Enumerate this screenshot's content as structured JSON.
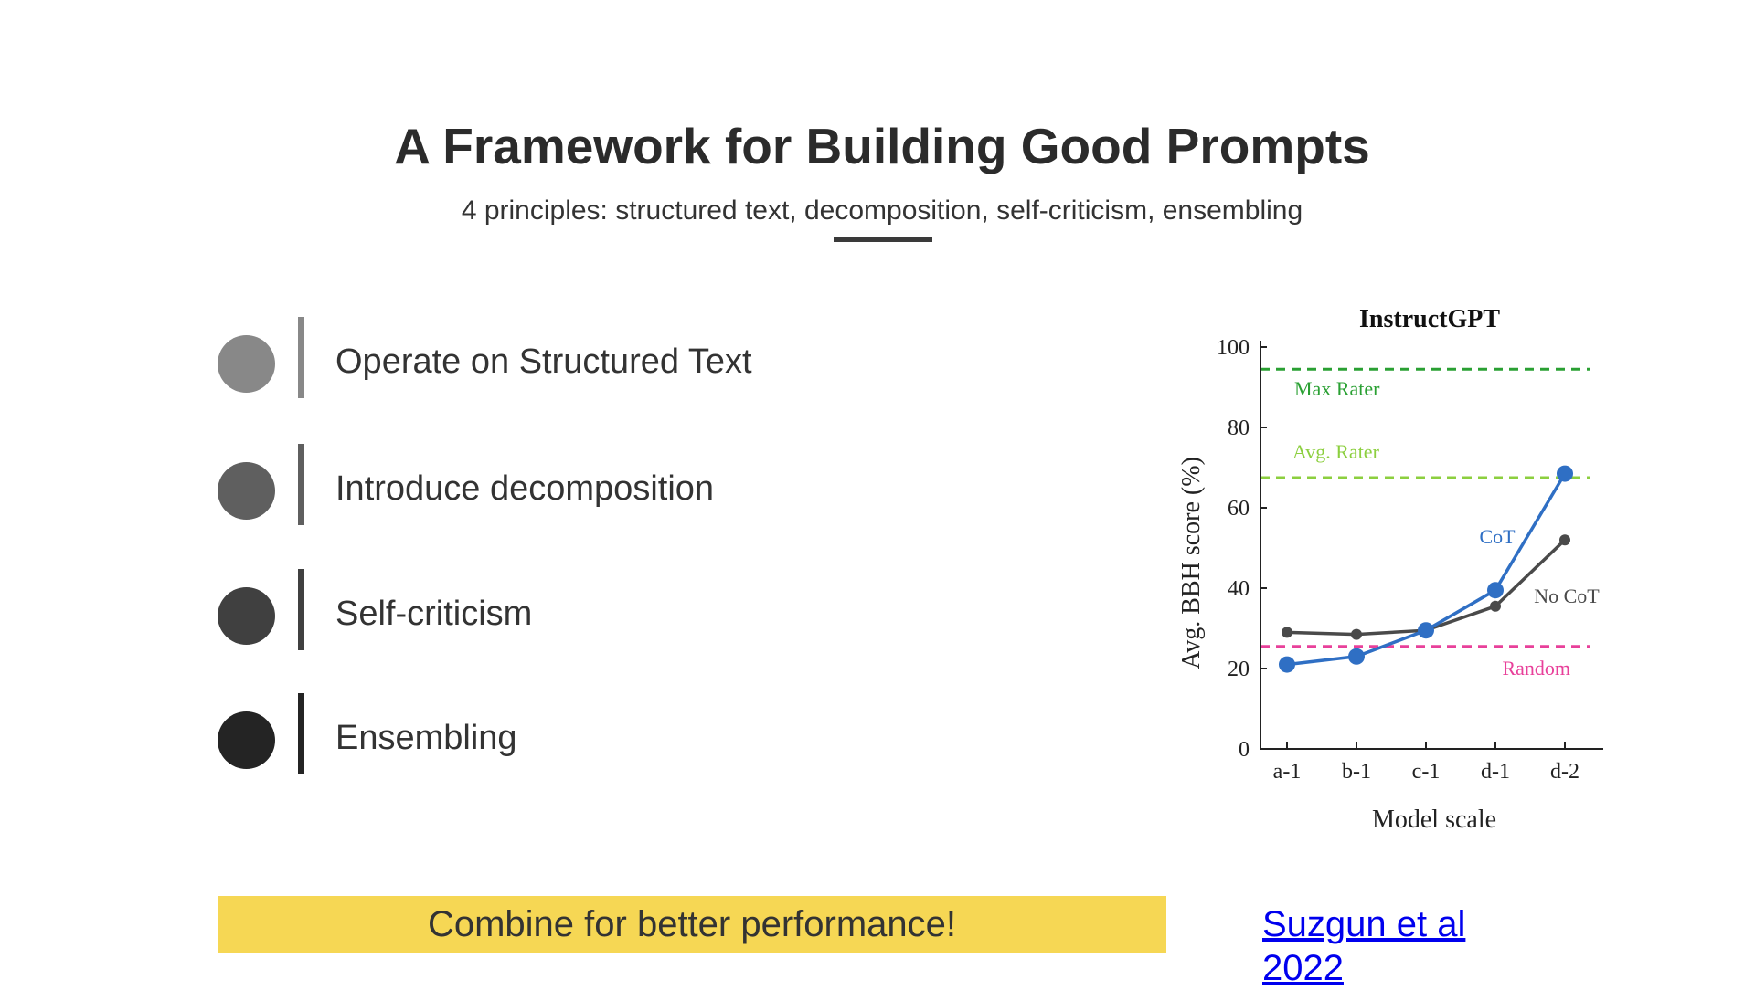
{
  "slide": {
    "title": "A Framework for Building Good Prompts",
    "subtitle": "4 principles: structured text, decomposition, self-criticism, ensembling",
    "principles": [
      {
        "label": "Operate on Structured Text",
        "dot_color": "#888888",
        "bar_color": "#888888"
      },
      {
        "label": "Introduce decomposition",
        "dot_color": "#5f5f5f",
        "bar_color": "#5f5f5f"
      },
      {
        "label": "Self-criticism",
        "dot_color": "#404040",
        "bar_color": "#404040"
      },
      {
        "label": "Ensembling",
        "dot_color": "#242424",
        "bar_color": "#242424"
      }
    ],
    "callout": "Combine for better performance!",
    "callout_color": "#f6d754",
    "citation": "Suzgun et al 2022",
    "citation_color": "#0000ee"
  },
  "chart_data": {
    "type": "line",
    "title": "InstructGPT",
    "xlabel": "Model scale",
    "ylabel": "Avg. BBH score (%)",
    "categories": [
      "a-1",
      "b-1",
      "c-1",
      "d-1",
      "d-2"
    ],
    "ylim": [
      0,
      100
    ],
    "yticks": [
      0,
      20,
      40,
      60,
      80,
      100
    ],
    "grid": false,
    "series": [
      {
        "name": "CoT",
        "values": [
          21,
          23,
          29.5,
          39.5,
          68.5
        ],
        "color": "#2f6fc4"
      },
      {
        "name": "No CoT",
        "values": [
          29,
          28.5,
          29.5,
          35.5,
          52
        ],
        "color": "#4a4a4a"
      }
    ],
    "reference_lines": [
      {
        "name": "Max Rater",
        "value": 94.5,
        "color": "#2aa033"
      },
      {
        "name": "Avg. Rater",
        "value": 67.5,
        "color": "#8ccf3f"
      },
      {
        "name": "Random",
        "value": 25.5,
        "color": "#e8409a"
      }
    ]
  }
}
